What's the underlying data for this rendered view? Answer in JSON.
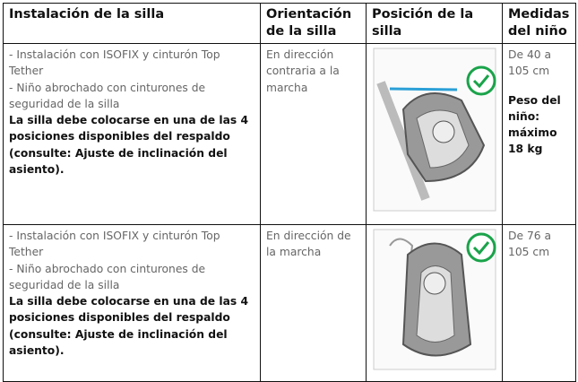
{
  "table": {
    "header": [
      "Instalación de la silla",
      "Orientación de la silla",
      "Posición de la silla",
      "Medidas del niño"
    ],
    "rows": [
      {
        "installation": [
          "- Instalación con ISOFIX y cinturón Top Tether",
          "- Niño abrochado con cinturones de seguridad de la silla"
        ],
        "installation_note": "La silla debe colocarse en una de las 4 posiciones disponibles del respaldo (consulte: Ajuste de inclinación del asiento).",
        "orientation": "En dirección contraria a la marcha",
        "measures": "De 40 a 105 cm",
        "weight": "Peso del niño: máximo 18 kg"
      },
      {
        "installation": [
          "- Instalación con ISOFIX y cinturón Top Tether",
          "- Niño abrochado con cinturones de seguridad de la silla"
        ],
        "installation_note": "La silla debe colocarse en una de las 4 posiciones disponibles del respaldo (consulte: Ajuste de inclinación del asiento).",
        "orientation": "En dirección de la marcha",
        "measures": "De 76 a 105 cm"
      }
    ]
  }
}
